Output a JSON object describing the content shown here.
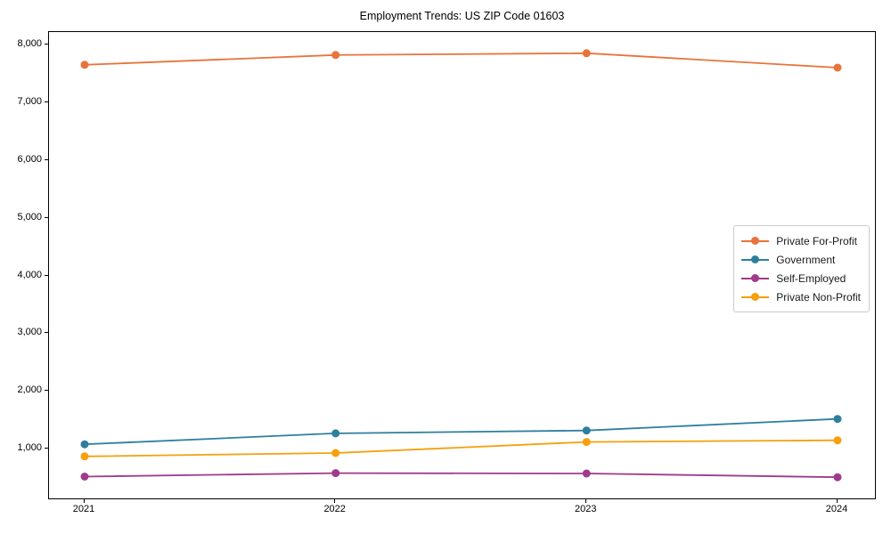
{
  "chart_data": {
    "type": "line",
    "title": "Employment Trends: US ZIP Code 01603",
    "xlabel": "",
    "ylabel": "",
    "x": [
      "2021",
      "2022",
      "2023",
      "2024"
    ],
    "series": [
      {
        "name": "Private For-Profit",
        "color": "#e8743b",
        "values": [
          7660,
          7830,
          7860,
          7610
        ]
      },
      {
        "name": "Government",
        "color": "#2e7f9e",
        "values": [
          1080,
          1270,
          1320,
          1520
        ]
      },
      {
        "name": "Self-Employed",
        "color": "#a03a8b",
        "values": [
          520,
          580,
          575,
          510
        ]
      },
      {
        "name": "Private Non-Profit",
        "color": "#f5a00c",
        "values": [
          870,
          930,
          1120,
          1150
        ]
      }
    ],
    "yticks": [
      {
        "value": 1000,
        "label": "1,000"
      },
      {
        "value": 2000,
        "label": "2,000"
      },
      {
        "value": 3000,
        "label": "3,000"
      },
      {
        "value": 4000,
        "label": "4,000"
      },
      {
        "value": 5000,
        "label": "5,000"
      },
      {
        "value": 6000,
        "label": "6,000"
      },
      {
        "value": 7000,
        "label": "7,000"
      },
      {
        "value": 8000,
        "label": "8,000"
      }
    ],
    "ylim": [
      140,
      8230
    ],
    "grid": false,
    "legend_position": "center right",
    "marker": "circle",
    "line_width": 1.8,
    "marker_radius": 4.5
  }
}
